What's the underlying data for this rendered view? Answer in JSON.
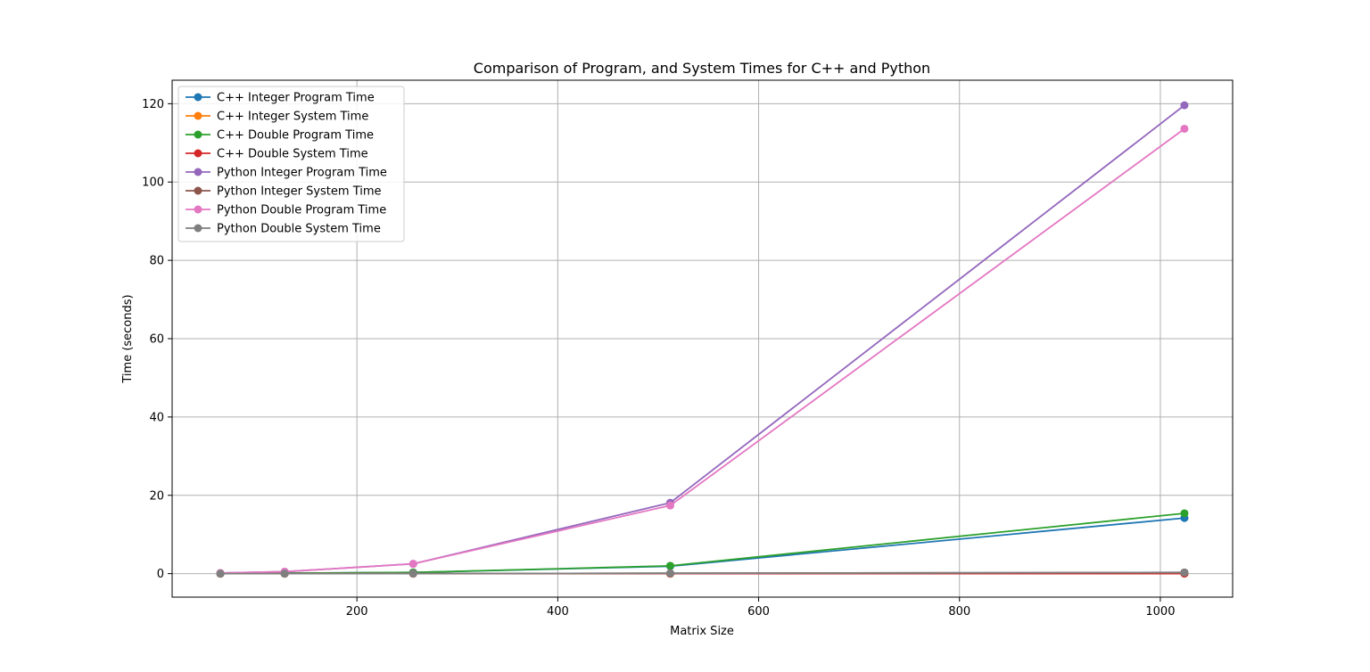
{
  "chart_data": {
    "type": "line",
    "title": "Comparison of Program, and System Times for C++ and Python",
    "xlabel": "Matrix Size",
    "ylabel": "Time (seconds)",
    "x": [
      64,
      128,
      256,
      512,
      1024
    ],
    "xlim": [
      16,
      1072
    ],
    "ylim": [
      -6,
      126
    ],
    "xticks": [
      200,
      400,
      600,
      800,
      1000
    ],
    "yticks": [
      0,
      20,
      40,
      60,
      80,
      100,
      120
    ],
    "grid": true,
    "legend_position": "top-left",
    "series": [
      {
        "name": "C++ Integer Program Time",
        "color": "#1f77b4",
        "values": [
          0.02,
          0.1,
          0.3,
          1.9,
          14.2
        ]
      },
      {
        "name": "C++ Integer System Time",
        "color": "#ff7f0e",
        "values": [
          0.0,
          0.0,
          0.0,
          0.0,
          0.01
        ]
      },
      {
        "name": "C++ Double Program Time",
        "color": "#2ca02c",
        "values": [
          0.02,
          0.1,
          0.3,
          2.0,
          15.4
        ]
      },
      {
        "name": "C++ Double System Time",
        "color": "#d62728",
        "values": [
          0.0,
          0.0,
          0.0,
          0.0,
          0.01
        ]
      },
      {
        "name": "Python Integer Program Time",
        "color": "#9467bd",
        "values": [
          0.15,
          0.5,
          2.5,
          18.1,
          119.6
        ]
      },
      {
        "name": "Python Integer System Time",
        "color": "#8c564b",
        "values": [
          0.0,
          0.0,
          0.02,
          0.1,
          0.3
        ]
      },
      {
        "name": "Python Double Program Time",
        "color": "#e377c2",
        "values": [
          0.15,
          0.5,
          2.5,
          17.4,
          113.6
        ]
      },
      {
        "name": "Python Double System Time",
        "color": "#7f7f7f",
        "values": [
          0.0,
          0.0,
          0.02,
          0.1,
          0.3
        ]
      }
    ]
  }
}
